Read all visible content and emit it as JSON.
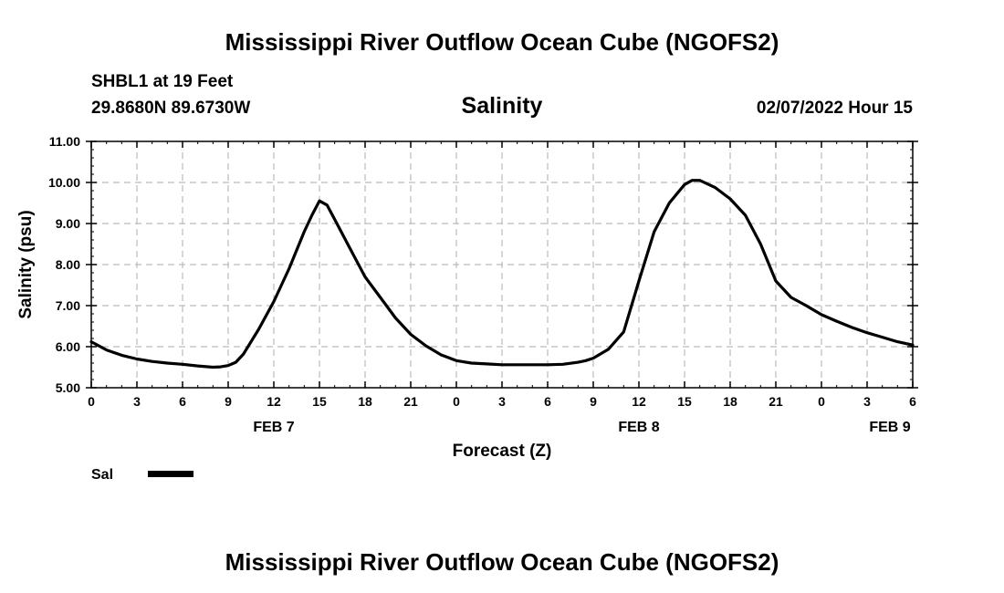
{
  "header": {
    "title": "Mississippi River Outflow Ocean Cube (NGOFS2)",
    "station": "SHBL1 at 19 Feet",
    "location": "29.8680N  89.6730W",
    "datetime": "02/07/2022 Hour 15"
  },
  "footer": {
    "title": "Mississippi River Outflow Ocean Cube (NGOFS2)"
  },
  "legend": {
    "label": "Sal"
  },
  "colors": {
    "line": "#000000",
    "grid": "#bbbbbb",
    "background": "#ffffff"
  },
  "chart_data": {
    "type": "line",
    "title": "Salinity",
    "xlabel": "Forecast (Z)",
    "ylabel": "Salinity (psu)",
    "xlim": [
      0,
      54
    ],
    "ylim": [
      5,
      11
    ],
    "x_unit": "hours from 00Z Feb 7",
    "yticks": [
      "5.00",
      "6.00",
      "7.00",
      "8.00",
      "9.00",
      "10.00",
      "11.00"
    ],
    "xtick_labels": [
      "0",
      "3",
      "6",
      "9",
      "12",
      "15",
      "18",
      "21",
      "0",
      "3",
      "6",
      "9",
      "12",
      "15",
      "18",
      "21",
      "0",
      "3",
      "6"
    ],
    "day_labels": [
      {
        "label": "FEB 7",
        "x": 12
      },
      {
        "label": "FEB 8",
        "x": 36
      },
      {
        "label": "FEB 9",
        "x": 52.5
      }
    ],
    "grid": true,
    "series": [
      {
        "name": "Sal",
        "x": [
          0,
          1,
          2,
          3,
          4,
          5,
          6,
          7,
          8,
          8.5,
          9,
          9.5,
          10,
          11,
          12,
          13,
          14,
          14.5,
          15,
          15.5,
          16,
          17,
          18,
          19,
          20,
          21,
          22,
          23,
          24,
          25,
          26,
          27,
          28,
          29,
          30,
          31,
          32,
          32.5,
          33,
          34,
          35,
          36,
          37,
          38,
          39,
          39.5,
          40,
          41,
          42,
          43,
          44,
          45,
          46,
          47,
          48,
          49,
          50,
          51,
          52,
          53,
          54
        ],
        "y": [
          6.12,
          5.92,
          5.79,
          5.7,
          5.64,
          5.6,
          5.57,
          5.53,
          5.5,
          5.51,
          5.54,
          5.62,
          5.82,
          6.42,
          7.1,
          7.9,
          8.8,
          9.2,
          9.55,
          9.45,
          9.1,
          8.4,
          7.7,
          7.2,
          6.7,
          6.3,
          6.02,
          5.8,
          5.66,
          5.6,
          5.58,
          5.56,
          5.56,
          5.56,
          5.56,
          5.57,
          5.62,
          5.66,
          5.72,
          5.94,
          6.36,
          7.6,
          8.8,
          9.5,
          9.95,
          10.05,
          10.05,
          9.88,
          9.6,
          9.2,
          8.5,
          7.6,
          7.2,
          7.0,
          6.78,
          6.62,
          6.47,
          6.34,
          6.23,
          6.12,
          6.04
        ]
      }
    ]
  }
}
